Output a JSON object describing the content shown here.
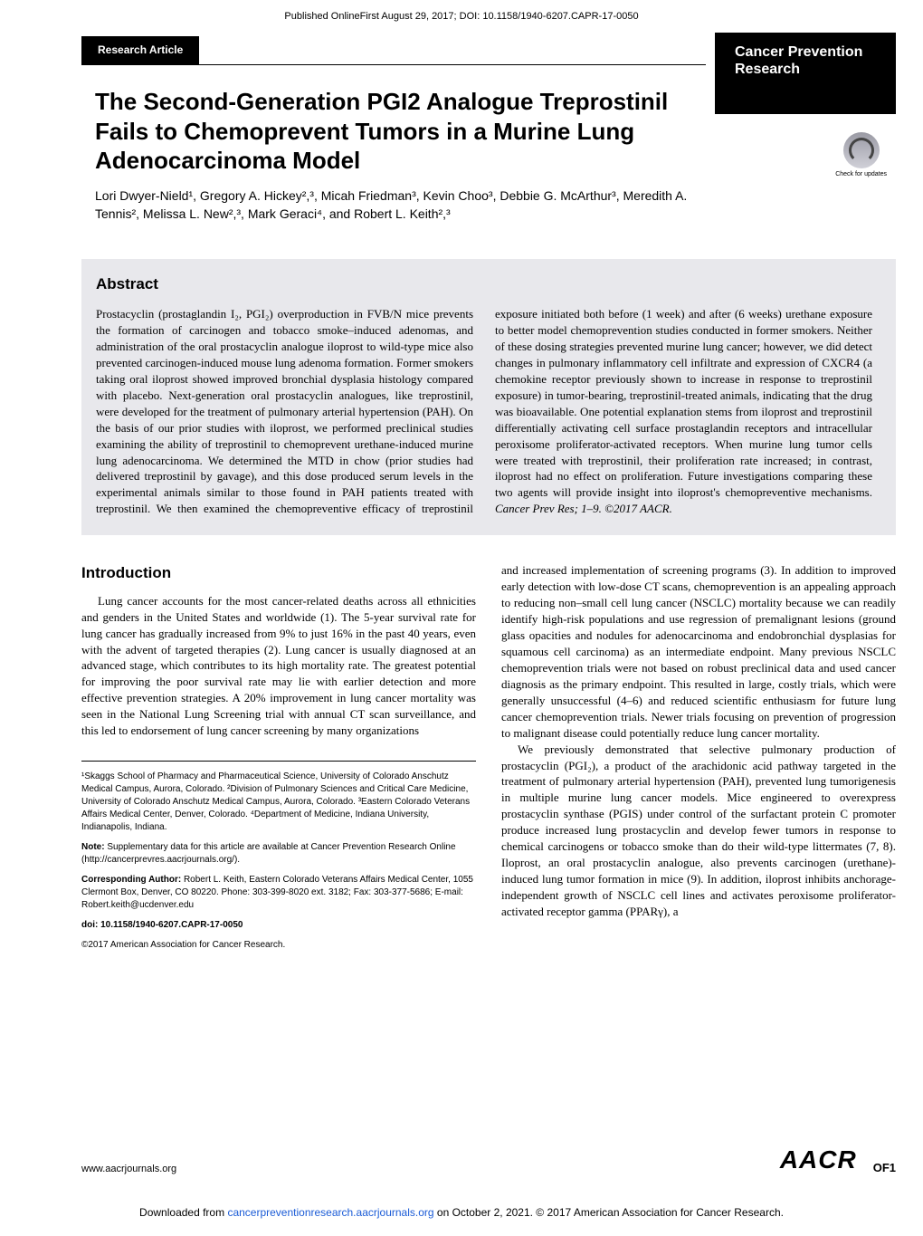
{
  "pub_info": "Published OnlineFirst August 29, 2017; DOI: 10.1158/1940-6207.CAPR-17-0050",
  "header": {
    "section_label": "Research Article",
    "journal_name": "Cancer Prevention Research"
  },
  "title": "The Second-Generation PGI2 Analogue Treprostinil Fails to Chemoprevent Tumors in a Murine Lung Adenocarcinoma Model",
  "authors_html": "Lori Dwyer-Nield¹, Gregory A. Hickey²,³, Micah Friedman³, Kevin Choo³, Debbie G. McArthur³, Meredith A. Tennis², Melissa L. New²,³, Mark Geraci⁴, and Robert L. Keith²,³",
  "check_updates_label": "Check for updates",
  "abstract": {
    "heading": "Abstract",
    "text": "Prostacyclin (prostaglandin I₂, PGI₂) overproduction in FVB/N mice prevents the formation of carcinogen and tobacco smoke–induced adenomas, and administration of the oral prostacyclin analogue iloprost to wild-type mice also prevented carcinogen-induced mouse lung adenoma formation. Former smokers taking oral iloprost showed improved bronchial dysplasia histology compared with placebo. Next-generation oral prostacyclin analogues, like treprostinil, were developed for the treatment of pulmonary arterial hypertension (PAH). On the basis of our prior studies with iloprost, we performed preclinical studies examining the ability of treprostinil to chemoprevent urethane-induced murine lung adenocarcinoma. We determined the MTD in chow (prior studies had delivered treprostinil by gavage), and this dose produced serum levels in the experimental animals similar to those found in PAH patients treated with treprostinil. We then examined the chemopreventive efficacy of treprostinil exposure initiated both before (1 week) and after (6 weeks) urethane exposure to better model chemoprevention studies conducted in former smokers. Neither of these dosing strategies prevented murine lung cancer; however, we did detect changes in pulmonary inflammatory cell infiltrate and expression of CXCR4 (a chemokine receptor previously shown to increase in response to treprostinil exposure) in tumor-bearing, treprostinil-treated animals, indicating that the drug was bioavailable. One potential explanation stems from iloprost and treprostinil differentially activating cell surface prostaglandin receptors and intracellular peroxisome proliferator-activated receptors. When murine lung tumor cells were treated with treprostinil, their proliferation rate increased; in contrast, iloprost had no effect on proliferation. Future investigations comparing these two agents will provide insight into iloprost's chemopreventive mechanisms.",
    "citation": "Cancer Prev Res; 1–9. ©2017 AACR."
  },
  "introduction": {
    "heading": "Introduction",
    "left_p1": "Lung cancer accounts for the most cancer-related deaths across all ethnicities and genders in the United States and worldwide (1). The 5-year survival rate for lung cancer has gradually increased from 9% to just 16% in the past 40 years, even with the advent of targeted therapies (2). Lung cancer is usually diagnosed at an advanced stage, which contributes to its high mortality rate. The greatest potential for improving the poor survival rate may lie with earlier detection and more effective prevention strategies. A 20% improvement in lung cancer mortality was seen in the National Lung Screening trial with annual CT scan surveillance, and this led to endorsement of lung cancer screening by many organizations",
    "right_p1": "and increased implementation of screening programs (3). In addition to improved early detection with low-dose CT scans, chemoprevention is an appealing approach to reducing non–small cell lung cancer (NSCLC) mortality because we can readily identify high-risk populations and use regression of premalignant lesions (ground glass opacities and nodules for adenocarcinoma and endobronchial dysplasias for squamous cell carcinoma) as an intermediate endpoint. Many previous NSCLC chemoprevention trials were not based on robust preclinical data and used cancer diagnosis as the primary endpoint. This resulted in large, costly trials, which were generally unsuccessful (4–6) and reduced scientific enthusiasm for future lung cancer chemoprevention trials. Newer trials focusing on prevention of progression to malignant disease could potentially reduce lung cancer mortality.",
    "right_p2": "We previously demonstrated that selective pulmonary production of prostacyclin (PGI₂), a product of the arachidonic acid pathway targeted in the treatment of pulmonary arterial hypertension (PAH), prevented lung tumorigenesis in multiple murine lung cancer models. Mice engineered to overexpress prostacyclin synthase (PGIS) under control of the surfactant protein C promoter produce increased lung prostacyclin and develop fewer tumors in response to chemical carcinogens or tobacco smoke than do their wild-type littermates (7, 8). Iloprost, an oral prostacyclin analogue, also prevents carcinogen (urethane)-induced lung tumor formation in mice (9). In addition, iloprost inhibits anchorage-independent growth of NSCLC cell lines and activates peroxisome proliferator-activated receptor gamma (PPARγ), a"
  },
  "affiliations": {
    "institutions": "¹Skaggs School of Pharmacy and Pharmaceutical Science, University of Colorado Anschutz Medical Campus, Aurora, Colorado. ²Division of Pulmonary Sciences and Critical Care Medicine, University of Colorado Anschutz Medical Campus, Aurora, Colorado. ³Eastern Colorado Veterans Affairs Medical Center, Denver, Colorado. ⁴Department of Medicine, Indiana University, Indianapolis, Indiana.",
    "note": "Note: Supplementary data for this article are available at Cancer Prevention Research Online (http://cancerprevres.aacrjournals.org/).",
    "corresponding": "Corresponding Author: Robert L. Keith, Eastern Colorado Veterans Affairs Medical Center, 1055 Clermont Box, Denver, CO 80220. Phone: 303-399-8020 ext. 3182; Fax: 303-377-5686; E-mail: Robert.keith@ucdenver.edu",
    "doi": "doi: 10.1158/1940-6207.CAPR-17-0050",
    "copyright": "©2017 American Association for Cancer Research."
  },
  "footer": {
    "url": "www.aacrjournals.org",
    "logo": "AACR",
    "pagenum": "OF1",
    "download_pre": "Downloaded from ",
    "download_link": "cancerpreventionresearch.aacrjournals.org",
    "download_post": " on October 2, 2021. © 2017 American Association for Cancer Research."
  },
  "colors": {
    "abstract_bg": "#e8e8ec",
    "link": "#1a5bd6"
  }
}
